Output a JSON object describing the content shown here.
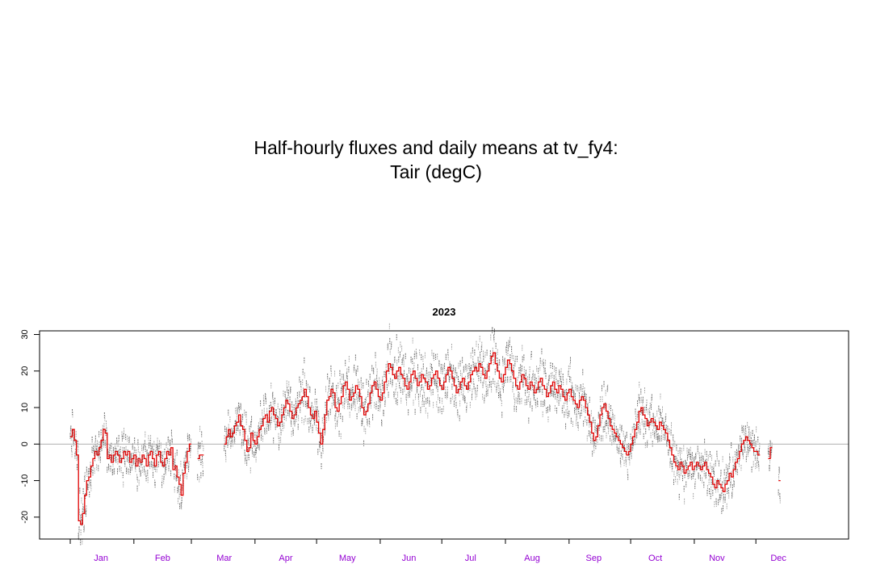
{
  "title": {
    "line1": "Half-hourly fluxes and daily means at tv_fy4:",
    "line2": "Tair (degC)"
  },
  "chart_data": {
    "type": "line",
    "title": "2023",
    "xlabel": "",
    "ylabel": "",
    "xlim": [
      0,
      365
    ],
    "ylim": [
      -26,
      31
    ],
    "y_ticks": [
      -20,
      -10,
      0,
      10,
      20,
      30
    ],
    "x_tick_labels": [
      "Jan",
      "Feb",
      "Mar",
      "Apr",
      "May",
      "Jun",
      "Jul",
      "Aug",
      "Sep",
      "Oct",
      "Nov",
      "Dec"
    ],
    "x_tick_positions": [
      15,
      45,
      75,
      105,
      135,
      165,
      195,
      225,
      255,
      285,
      315,
      345
    ],
    "reference_line_y": 0,
    "colors": {
      "daily_mean": "#e00000",
      "half_hourly": "#555555",
      "zero_line": "#b0b0b0",
      "tick_label": "#9400D3"
    },
    "series": [
      {
        "name": "daily mean",
        "x": [
          0,
          1,
          2,
          3,
          4,
          5,
          6,
          7,
          8,
          9,
          10,
          11,
          12,
          13,
          14,
          15,
          16,
          17,
          18,
          19,
          20,
          21,
          22,
          23,
          24,
          25,
          26,
          27,
          28,
          29,
          30,
          31,
          32,
          33,
          34,
          35,
          36,
          37,
          38,
          39,
          40,
          41,
          42,
          43,
          44,
          45,
          46,
          47,
          48,
          49,
          50,
          51,
          52,
          53,
          54,
          55,
          56,
          57,
          58,
          59,
          60,
          61,
          62,
          63,
          64,
          65,
          66,
          67,
          68,
          69,
          70,
          71,
          72,
          73,
          74,
          75,
          76,
          77,
          78,
          79,
          80,
          81,
          82,
          83,
          84,
          85,
          86,
          87,
          88,
          89,
          90,
          91,
          92,
          93,
          94,
          95,
          96,
          97,
          98,
          99,
          100,
          101,
          102,
          103,
          104,
          105,
          106,
          107,
          108,
          109,
          110,
          111,
          112,
          113,
          114,
          115,
          116,
          117,
          118,
          119,
          120,
          121,
          122,
          123,
          124,
          125,
          126,
          127,
          128,
          129,
          130,
          131,
          132,
          133,
          134,
          135,
          136,
          137,
          138,
          139,
          140,
          141,
          142,
          143,
          144,
          145,
          146,
          147,
          148,
          149,
          150,
          151,
          152,
          153,
          154,
          155,
          156,
          157,
          158,
          159,
          160,
          161,
          162,
          163,
          164,
          165,
          166,
          167,
          168,
          169,
          170,
          171,
          172,
          173,
          174,
          175,
          176,
          177,
          178,
          179,
          180,
          181,
          182,
          183,
          184,
          185,
          186,
          187,
          188,
          189,
          190,
          191,
          192,
          193,
          194,
          195,
          196,
          197,
          198,
          199,
          200,
          201,
          202,
          203,
          204,
          205,
          206,
          207,
          208,
          209,
          210,
          211,
          212,
          213,
          214,
          215,
          216,
          217,
          218,
          219,
          220,
          221,
          222,
          223,
          224,
          225,
          226,
          227,
          228,
          229,
          230,
          231,
          232,
          233,
          234,
          235,
          236,
          237,
          238,
          239,
          240,
          241,
          242,
          243,
          244,
          245,
          246,
          247,
          248,
          249,
          250,
          251,
          252,
          253,
          254,
          255,
          256,
          257,
          258,
          259,
          260,
          261,
          262,
          263,
          264,
          265,
          266,
          267,
          268,
          269,
          270,
          271,
          272,
          273,
          274,
          275,
          276,
          277,
          278,
          279,
          280,
          281,
          282,
          283,
          284,
          285,
          286,
          287,
          288,
          289,
          290,
          291,
          292,
          293,
          294,
          295,
          296,
          297,
          298,
          299,
          300,
          301,
          302,
          303,
          304,
          305,
          306,
          307,
          308,
          309,
          310,
          311,
          312,
          313,
          314,
          315,
          316,
          317,
          318,
          319,
          320,
          321,
          322,
          323,
          324,
          325,
          326,
          327,
          328,
          329,
          330,
          331,
          332,
          333,
          334,
          335,
          336,
          337,
          338,
          339,
          340,
          341,
          342,
          343,
          344,
          345,
          346,
          347,
          348,
          349,
          350,
          351,
          352,
          353,
          354,
          355,
          356,
          357,
          358,
          359,
          360,
          361,
          362,
          363,
          364
        ],
        "y": [
          2,
          4,
          1,
          -3,
          -21,
          -22,
          -19,
          -14,
          -10,
          -9,
          -6,
          -4,
          -2,
          -3,
          -1,
          1,
          4,
          3,
          -4,
          -3,
          -5,
          -3,
          -2,
          -3,
          -5,
          -4,
          -2,
          -3,
          -2,
          -5,
          -4,
          -3,
          -6,
          -4,
          -5,
          -3,
          -4,
          -6,
          -3,
          -2,
          -4,
          -6,
          -3,
          -2,
          -5,
          -6,
          -4,
          -2,
          -3,
          -1,
          -7,
          -6,
          -9,
          -11,
          -14,
          -8,
          -5,
          -2,
          0,
          null,
          null,
          null,
          -4,
          -3,
          -3,
          null,
          null,
          null,
          null,
          null,
          null,
          null,
          null,
          null,
          null,
          0,
          2,
          4,
          2,
          3,
          5,
          6,
          8,
          5,
          4,
          1,
          -2,
          -1,
          3,
          1,
          0,
          2,
          4,
          5,
          7,
          8,
          6,
          9,
          10,
          8,
          7,
          5,
          6,
          8,
          10,
          12,
          11,
          9,
          7,
          8,
          10,
          11,
          12,
          13,
          15,
          13,
          10,
          8,
          7,
          9,
          6,
          3,
          0,
          4,
          8,
          12,
          13,
          15,
          14,
          10,
          9,
          11,
          13,
          16,
          17,
          15,
          12,
          13,
          14,
          16,
          15,
          13,
          10,
          8,
          9,
          11,
          14,
          16,
          17,
          15,
          13,
          12,
          14,
          17,
          20,
          22,
          21,
          19,
          18,
          20,
          21,
          19,
          18,
          16,
          15,
          17,
          19,
          20,
          18,
          16,
          17,
          19,
          18,
          17,
          15,
          16,
          18,
          19,
          20,
          18,
          16,
          15,
          17,
          19,
          21,
          20,
          18,
          16,
          14,
          15,
          17,
          18,
          16,
          15,
          17,
          19,
          20,
          21,
          20,
          22,
          21,
          19,
          18,
          20,
          22,
          24,
          25,
          22,
          20,
          18,
          17,
          19,
          21,
          23,
          22,
          20,
          18,
          16,
          15,
          17,
          19,
          18,
          16,
          15,
          17,
          16,
          14,
          15,
          17,
          18,
          16,
          15,
          13,
          14,
          16,
          17,
          15,
          14,
          16,
          15,
          13,
          12,
          14,
          15,
          13,
          12,
          11,
          10,
          12,
          13,
          12,
          10,
          8,
          6,
          3,
          1,
          2,
          5,
          8,
          10,
          11,
          9,
          7,
          5,
          4,
          3,
          2,
          1,
          0,
          -1,
          -2,
          -3,
          -2,
          0,
          2,
          4,
          6,
          9,
          10,
          8,
          7,
          5,
          6,
          7,
          6,
          5,
          4,
          6,
          5,
          4,
          3,
          1,
          -1,
          -3,
          -5,
          -6,
          -7,
          -5,
          -6,
          -8,
          -7,
          -6,
          -5,
          -7,
          -6,
          -5,
          -6,
          -7,
          -6,
          -5,
          -7,
          -8,
          -9,
          -11,
          -12,
          -10,
          -11,
          -12,
          -13,
          -11,
          -10,
          -8,
          -9,
          -7,
          -5,
          -4,
          -2,
          0,
          1,
          2,
          1,
          0,
          -1,
          -2,
          -2,
          -3,
          null,
          null,
          null,
          null,
          -4,
          -1,
          null,
          null,
          null,
          -10,
          null,
          null,
          null,
          null,
          null,
          null,
          null,
          null,
          null,
          null,
          null,
          null,
          null,
          null,
          null,
          null,
          null,
          null,
          null
        ]
      }
    ]
  }
}
